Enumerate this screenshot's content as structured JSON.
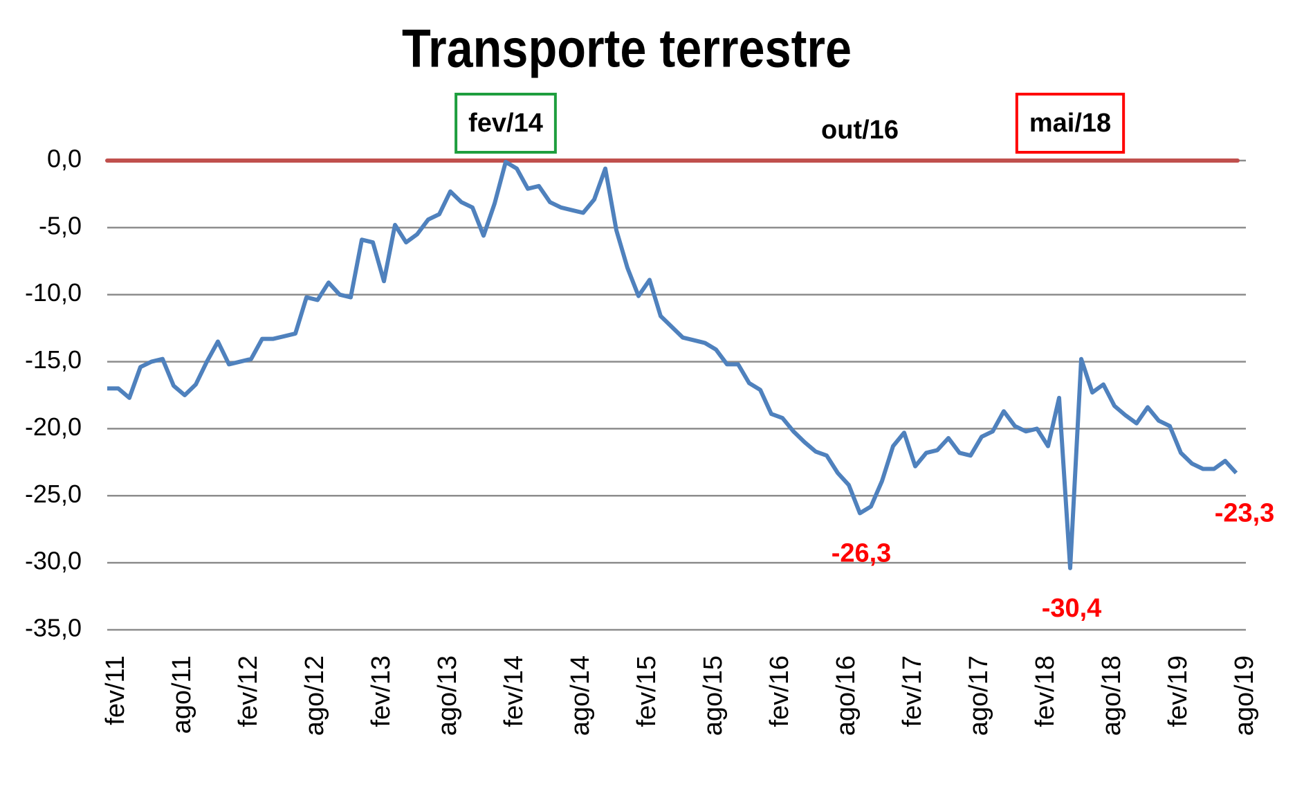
{
  "chart_data": {
    "type": "line",
    "title": "Transporte terrestre",
    "categories": [
      "fev/11",
      null,
      null,
      null,
      null,
      null,
      "ago/11",
      null,
      null,
      null,
      null,
      null,
      "fev/12",
      null,
      null,
      null,
      null,
      null,
      "ago/12",
      null,
      null,
      null,
      null,
      null,
      "fev/13",
      null,
      null,
      null,
      null,
      null,
      "ago/13",
      null,
      null,
      null,
      null,
      null,
      "fev/14",
      null,
      null,
      null,
      null,
      null,
      "ago/14",
      null,
      null,
      null,
      null,
      null,
      "fev/15",
      null,
      null,
      null,
      null,
      null,
      "ago/15",
      null,
      null,
      null,
      null,
      null,
      "fev/16",
      null,
      null,
      null,
      null,
      null,
      "ago/16",
      null,
      null,
      null,
      null,
      null,
      "fev/17",
      null,
      null,
      null,
      null,
      null,
      "ago/17",
      null,
      null,
      null,
      null,
      null,
      "fev/18",
      null,
      null,
      null,
      null,
      null,
      "ago/18",
      null,
      null,
      null,
      null,
      null,
      "fev/19",
      null,
      null,
      null,
      null,
      null,
      "ago/19"
    ],
    "series": [
      {
        "name": "Transporte terrestre",
        "color": "#4f81bd",
        "values": [
          -17.0,
          -17.0,
          -17.7,
          -15.4,
          -15.0,
          -14.8,
          -16.8,
          -17.5,
          -16.7,
          -15.0,
          -13.5,
          -15.2,
          -15.0,
          -14.8,
          -13.3,
          -13.3,
          -13.1,
          -12.9,
          -10.2,
          -10.4,
          -9.1,
          -10.0,
          -10.2,
          -5.9,
          -6.1,
          -9.0,
          -4.8,
          -6.1,
          -5.5,
          -4.4,
          -4.0,
          -2.3,
          -3.1,
          -3.5,
          -5.6,
          -3.2,
          -0.1,
          -0.6,
          -2.1,
          -1.9,
          -3.1,
          -3.5,
          -3.7,
          -3.9,
          -2.9,
          -0.6,
          -5.2,
          -8.0,
          -10.1,
          -8.9,
          -11.6,
          -12.4,
          -13.2,
          -13.4,
          -13.6,
          -14.1,
          -15.2,
          -15.2,
          -16.6,
          -17.1,
          -18.9,
          -19.2,
          -20.2,
          -21.0,
          -21.7,
          -22.0,
          -23.3,
          -24.2,
          -26.3,
          -25.8,
          -23.9,
          -21.3,
          -20.3,
          -22.8,
          -21.8,
          -21.6,
          -20.7,
          -21.8,
          -22.0,
          -20.6,
          -20.2,
          -18.7,
          -19.8,
          -20.2,
          -20.0,
          -21.3,
          -17.7,
          -30.4,
          -14.8,
          -17.3,
          -16.7,
          -18.3,
          -19.0,
          -19.6,
          -18.4,
          -19.4,
          -19.8,
          -21.8,
          -22.6,
          -23.0,
          -23.0,
          -22.4,
          -23.3
        ],
        "value_labels": [
          null,
          null,
          null,
          null,
          null,
          null,
          null,
          null,
          null,
          null,
          null,
          null,
          null,
          null,
          null,
          null,
          null,
          null,
          null,
          null,
          null,
          null,
          null,
          null,
          null,
          null,
          null,
          null,
          null,
          null,
          null,
          null,
          null,
          null,
          null,
          null,
          null,
          null,
          null,
          null,
          null,
          null,
          null,
          null,
          null,
          null,
          null,
          null,
          null,
          null,
          null,
          null,
          null,
          null,
          null,
          null,
          null,
          null,
          null,
          null,
          null,
          null,
          null,
          null,
          null,
          null,
          null,
          null,
          "-26,3",
          null,
          null,
          null,
          null,
          null,
          null,
          null,
          null,
          null,
          null,
          null,
          null,
          null,
          null,
          null,
          null,
          null,
          null,
          "-30,4",
          null,
          null,
          null,
          null,
          null,
          null,
          null,
          null,
          null,
          null,
          null,
          null,
          null,
          null,
          "-23,3"
        ],
        "value_label_color": "#ff0000"
      }
    ],
    "ylim": [
      -35,
      0
    ],
    "yticks": [
      {
        "value": 0,
        "label": "0,0"
      },
      {
        "value": -5,
        "label": "-5,0"
      },
      {
        "value": -10,
        "label": "-10,0"
      },
      {
        "value": -15,
        "label": "-15,0"
      },
      {
        "value": -20,
        "label": "-20,0"
      },
      {
        "value": -25,
        "label": "-25,0"
      },
      {
        "value": -30,
        "label": "-30,0"
      },
      {
        "value": -35,
        "label": "-35,0"
      }
    ],
    "grid": true,
    "reference_line": {
      "value": 0,
      "color": "#c0504d"
    },
    "annotations": [
      {
        "text": "fev/14",
        "at": 36,
        "box_color": "#1e9e3e"
      },
      {
        "text": "out/16",
        "at": 68,
        "box_color": null
      },
      {
        "text": "mai/18",
        "at": 87,
        "box_color": "#ff0000"
      }
    ]
  }
}
